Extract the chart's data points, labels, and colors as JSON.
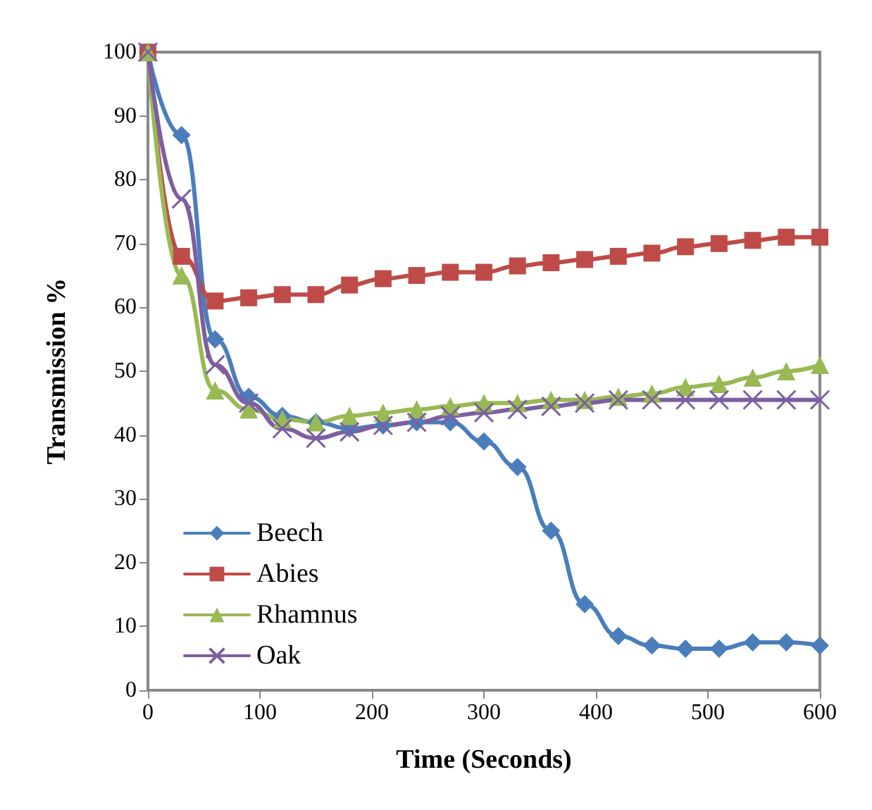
{
  "chart_data": {
    "type": "line",
    "xlabel": "Time (Seconds)",
    "ylabel": "Transmission %",
    "x": [
      0,
      30,
      60,
      90,
      120,
      150,
      180,
      210,
      240,
      270,
      300,
      330,
      360,
      390,
      420,
      450,
      480,
      510,
      540,
      570,
      600
    ],
    "series": [
      {
        "name": "Beech",
        "color": "#4a7ebb",
        "marker": "diamond",
        "values": [
          100,
          87,
          55,
          46,
          43,
          42,
          41,
          41.5,
          42,
          42,
          39,
          35,
          25,
          13.5,
          8.5,
          7,
          6.5,
          6.5,
          7.5,
          7.5,
          7
        ]
      },
      {
        "name": "Abies",
        "color": "#be4b48",
        "marker": "square",
        "values": [
          100,
          68,
          61,
          61.5,
          62,
          62,
          63.5,
          64.5,
          65,
          65.5,
          65.5,
          66.5,
          67,
          67.5,
          68,
          68.5,
          69.5,
          70,
          70.5,
          71,
          71
        ]
      },
      {
        "name": "Rhamnus",
        "color": "#98b954",
        "marker": "triangle",
        "values": [
          100,
          65,
          47,
          44,
          42.5,
          42,
          43,
          43.5,
          44,
          44.5,
          45,
          45,
          45.5,
          45.5,
          46,
          46.5,
          47.5,
          48,
          49,
          50,
          51
        ]
      },
      {
        "name": "Oak",
        "color": "#7d5fa0",
        "marker": "cross",
        "values": [
          100,
          77,
          51,
          45,
          41,
          39.5,
          40.5,
          41.5,
          42,
          43,
          43.5,
          44,
          44.5,
          45,
          45.5,
          45.5,
          45.5,
          45.5,
          45.5,
          45.5,
          45.5
        ]
      }
    ],
    "xlim": [
      0,
      600
    ],
    "xticks": [
      0,
      100,
      200,
      300,
      400,
      500,
      600
    ],
    "ylim": [
      0,
      100
    ],
    "yticks": [
      0,
      10,
      20,
      30,
      40,
      50,
      60,
      70,
      80,
      90,
      100
    ],
    "grid": false,
    "legend": "bottom left",
    "line_style": "solid"
  }
}
